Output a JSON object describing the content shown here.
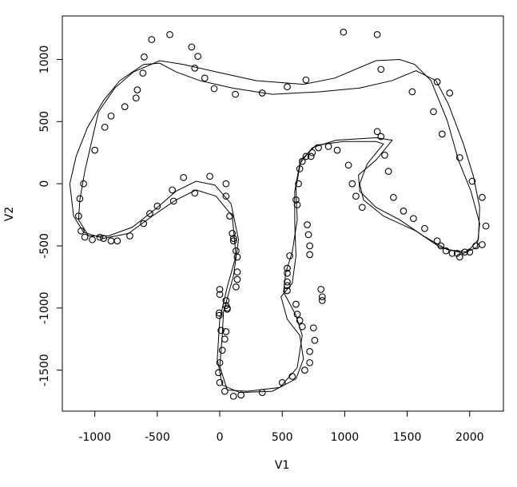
{
  "chart_data": {
    "type": "scatter",
    "x_label": "V1",
    "y_label": "V2",
    "xlim": [
      -1260,
      2270
    ],
    "ylim": [
      -1830,
      1350
    ],
    "xticks": [
      -1000,
      -500,
      0,
      500,
      1000,
      1500,
      2000
    ],
    "yticks": [
      -1500,
      -1000,
      -500,
      0,
      500,
      1000
    ],
    "color": "#000000",
    "points": {
      "x": [
        -545,
        -400,
        -225,
        -175,
        -605,
        -615,
        -200,
        -120,
        -45,
        125,
        340,
        540,
        690,
        -660,
        -670,
        -760,
        -870,
        -920,
        -1000,
        -1090,
        -1120,
        -1130,
        -1110,
        -1080,
        -1020,
        -960,
        -930,
        -870,
        -820,
        -720,
        -610,
        -560,
        -500,
        -380,
        -370,
        -290,
        -200,
        -80,
        50,
        50,
        80,
        100,
        110,
        110,
        130,
        140,
        140,
        140,
        130,
        0,
        0,
        -5,
        -5,
        50,
        50,
        60,
        60,
        10,
        50,
        40,
        20,
        0,
        -10,
        0,
        40,
        110,
        170,
        340,
        500,
        580,
        680,
        720,
        720,
        760,
        750,
        660,
        640,
        620,
        610,
        540,
        540,
        540,
        540,
        560,
        540,
        700,
        710,
        720,
        720,
        610,
        620,
        630,
        640,
        660,
        690,
        730,
        740,
        790,
        870,
        940,
        1030,
        1060,
        1090,
        1140,
        1260,
        1290,
        1320,
        1350,
        1390,
        1470,
        1550,
        1640,
        1740,
        1770,
        1810,
        1860,
        1900,
        1920,
        1960,
        2000,
        2050,
        2100,
        2130,
        2100,
        2020,
        1920,
        1780,
        1710,
        1740,
        1840,
        1540,
        1290,
        990,
        1260,
        810,
        820,
        820
      ],
      "y": [
        1160,
        1200,
        1100,
        1025,
        1020,
        890,
        930,
        850,
        765,
        720,
        730,
        780,
        835,
        755,
        690,
        620,
        545,
        455,
        270,
        0,
        -120,
        -260,
        -380,
        -430,
        -450,
        -430,
        -440,
        -460,
        -460,
        -420,
        -320,
        -240,
        -180,
        -50,
        -140,
        50,
        -75,
        60,
        0,
        -100,
        -260,
        -400,
        -440,
        -460,
        -540,
        -590,
        -710,
        -770,
        -830,
        -850,
        -890,
        -1040,
        -1060,
        -940,
        -980,
        -1000,
        -1010,
        -1180,
        -1190,
        -1250,
        -1340,
        -1440,
        -1520,
        -1600,
        -1670,
        -1710,
        -1700,
        -1680,
        -1600,
        -1550,
        -1500,
        -1440,
        -1350,
        -1260,
        -1160,
        -1150,
        -1100,
        -1050,
        -970,
        -790,
        -820,
        -860,
        -720,
        -580,
        -680,
        -330,
        -410,
        -500,
        -570,
        -130,
        -170,
        0,
        120,
        180,
        220,
        220,
        250,
        290,
        300,
        270,
        150,
        0,
        -100,
        -190,
        420,
        380,
        230,
        100,
        -110,
        -220,
        -280,
        -360,
        -460,
        -500,
        -540,
        -560,
        -560,
        -590,
        -550,
        -550,
        -500,
        -490,
        -340,
        -110,
        20,
        210,
        400,
        580,
        820,
        730,
        740,
        920,
        1220,
        1200,
        -850,
        -910,
        -940
      ]
    },
    "curves": [
      {
        "x": [
          -1200,
          -1150,
          -1060,
          -930,
          -800,
          -610,
          -480,
          -350,
          -160,
          100,
          420,
          800,
          1120,
          1380,
          1570,
          1730,
          1830,
          1950,
          2030,
          2080,
          2070,
          1980,
          1820,
          1630,
          1440,
          1250,
          1120,
          1110,
          1250,
          1380,
          1250,
          930,
          740,
          640,
          600,
          600,
          610,
          580,
          490,
          540,
          640,
          670,
          610,
          420,
          160,
          20,
          -20,
          0,
          60,
          130,
          100,
          -30,
          -190,
          -350,
          -540,
          -730,
          -930,
          -1090,
          -1170,
          -1200
        ],
        "y": [
          0,
          220,
          450,
          670,
          830,
          960,
          970,
          900,
          830,
          770,
          720,
          740,
          770,
          830,
          910,
          830,
          640,
          320,
          60,
          -190,
          -450,
          -550,
          -530,
          -420,
          -290,
          -190,
          -60,
          70,
          190,
          350,
          370,
          350,
          290,
          160,
          -60,
          -320,
          -580,
          -800,
          -910,
          -1090,
          -1220,
          -1410,
          -1570,
          -1670,
          -1680,
          -1620,
          -1410,
          -1090,
          -830,
          -580,
          -260,
          -100,
          -50,
          -130,
          -260,
          -400,
          -440,
          -390,
          -260,
          0
        ]
      },
      {
        "x": [
          -1120,
          -1080,
          -1030,
          -970,
          -840,
          -690,
          -480,
          -290,
          -30,
          290,
          670,
          920,
          1250,
          1440,
          1560,
          1690,
          1820,
          1910,
          2010,
          2080,
          2060,
          1950,
          1760,
          1570,
          1310,
          1150,
          1120,
          1180,
          1310,
          1250,
          990,
          770,
          650,
          610,
          620,
          580,
          530,
          510,
          610,
          660,
          620,
          480,
          220,
          60,
          0,
          20,
          30,
          110,
          150,
          90,
          -40,
          -190,
          -350,
          -510,
          -700,
          -890,
          -1050,
          -1130,
          -1120
        ],
        "y": [
          -130,
          100,
          320,
          580,
          770,
          900,
          990,
          960,
          900,
          830,
          800,
          850,
          990,
          1000,
          960,
          830,
          510,
          190,
          -60,
          -320,
          -510,
          -560,
          -510,
          -380,
          -260,
          -130,
          0,
          160,
          320,
          340,
          340,
          310,
          190,
          -30,
          -290,
          -550,
          -710,
          -870,
          -1060,
          -1220,
          -1480,
          -1640,
          -1670,
          -1660,
          -1470,
          -1220,
          -1030,
          -740,
          -450,
          -160,
          -10,
          20,
          -60,
          -200,
          -350,
          -420,
          -420,
          -290,
          -130
        ]
      }
    ]
  }
}
